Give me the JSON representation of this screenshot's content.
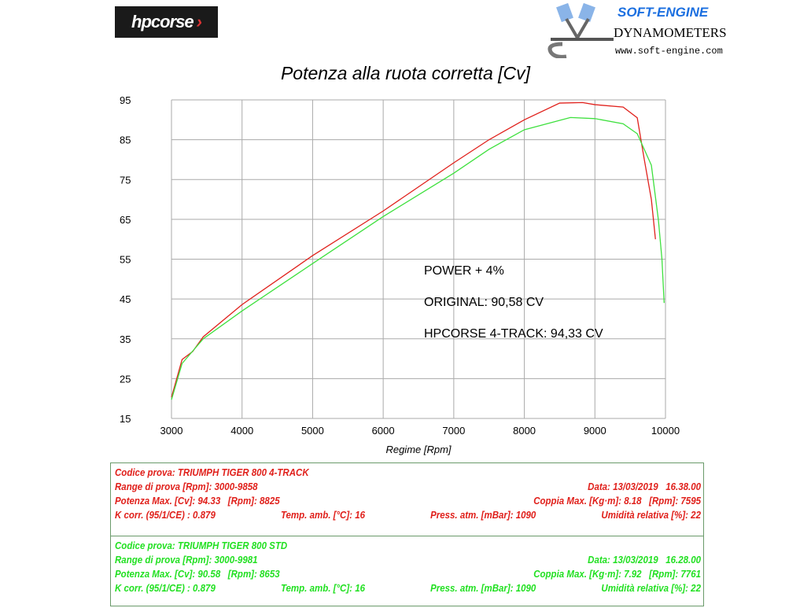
{
  "logos": {
    "hpcorse": "hpcorse",
    "softengine": {
      "name": "SOFT-ENGINE",
      "sub": "DYNAMOMETERS",
      "url": "www.soft-engine.com"
    }
  },
  "chart_data": {
    "type": "line",
    "title": "Potenza alla ruota corretta [Cv]",
    "xlabel": "Regime [Rpm]",
    "ylabel": "",
    "xlim": [
      3000,
      10000
    ],
    "ylim": [
      15,
      95
    ],
    "xticks": [
      3000,
      4000,
      5000,
      6000,
      7000,
      8000,
      9000,
      10000
    ],
    "yticks": [
      15,
      25,
      35,
      45,
      55,
      65,
      75,
      85,
      95
    ],
    "grid": true,
    "series": [
      {
        "color": "#e0201b",
        "x": [
          3000,
          3150,
          3300,
          3450,
          4000,
          5000,
          6000,
          7000,
          7500,
          8000,
          8500,
          8825,
          9000,
          9400,
          9600,
          9700,
          9800,
          9858
        ],
        "y": [
          20.3,
          29.8,
          31.8,
          35.5,
          43.6,
          55.9,
          67.1,
          79.2,
          85,
          90,
          94.2,
          94.33,
          93.8,
          93.2,
          90.5,
          80,
          70,
          60
        ]
      },
      {
        "color": "#3ee03e",
        "x": [
          3000,
          3150,
          3450,
          4000,
          5000,
          6000,
          7000,
          7500,
          8000,
          8653,
          9000,
          9400,
          9600,
          9800,
          9900,
          9950,
          9981
        ],
        "y": [
          19.7,
          28.8,
          35,
          42,
          53.9,
          65.7,
          76.6,
          82.6,
          87.5,
          90.58,
          90.3,
          89,
          86.5,
          78.6,
          64.8,
          55,
          44
        ]
      }
    ],
    "annotations": [
      "POWER + 4%",
      "ORIGINAL: 90,58 CV",
      "HPCORSE 4-TRACK: 94,33 CV"
    ]
  },
  "tests": [
    {
      "color": "#e0201b",
      "codice": "Codice prova: TRIUMPH TIGER 800 4-TRACK",
      "range": "Range di prova [Rpm]: 3000-9858",
      "data": "Data: 13/03/2019   16.38.00",
      "potenza": "Potenza Max. [Cv]: 94.33   [Rpm]: 8825",
      "coppia": "Coppia Max. [Kg·m]: 8.18   [Rpm]: 7595",
      "kcorr": "K corr. (95/1/CE) : 0.879",
      "temp": "Temp. amb. [°C]: 16",
      "press": "Press. atm. [mBar]: 1090",
      "umid": "Umidità relativa [%]: 22"
    },
    {
      "color": "#22e022",
      "codice": "Codice prova: TRIUMPH TIGER 800 STD",
      "range": "Range di prova [Rpm]: 3000-9981",
      "data": "Data: 13/03/2019   16.28.00",
      "potenza": "Potenza Max. [Cv]: 90.58   [Rpm]: 8653",
      "coppia": "Coppia Max. [Kg·m]: 7.92   [Rpm]: 7761",
      "kcorr": "K corr. (95/1/CE) : 0.879",
      "temp": "Temp. amb. [°C]: 16",
      "press": "Press. atm. [mBar]: 1090",
      "umid": "Umidità relativa [%]: 22"
    }
  ]
}
